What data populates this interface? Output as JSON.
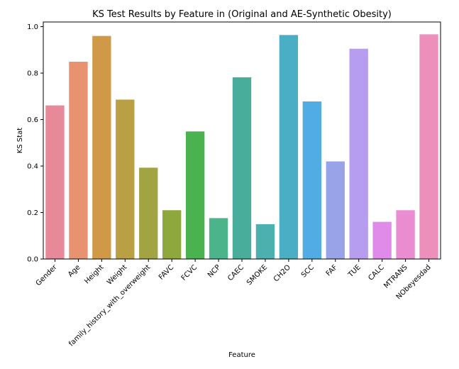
{
  "chart_data": {
    "type": "bar",
    "title": "KS Test Results by Feature in (Original and AE-Synthetic Obesity)",
    "xlabel": "Feature",
    "ylabel": "KS Stat",
    "ylim": [
      0,
      1.02
    ],
    "yticks": [
      "0.0",
      "0.2",
      "0.4",
      "0.6",
      "0.8",
      "1.0"
    ],
    "grid": false,
    "categories": [
      "Gender",
      "Age",
      "Height",
      "Weight",
      "family_history_with_overweight",
      "FAVC",
      "FCVC",
      "NCP",
      "CAEC",
      "SMOKE",
      "CH2O",
      "SCC",
      "FAF",
      "TUE",
      "CALC",
      "MTRANS",
      "NObeyesdad"
    ],
    "values": [
      0.661,
      0.849,
      0.96,
      0.686,
      0.393,
      0.21,
      0.549,
      0.176,
      0.782,
      0.15,
      0.964,
      0.678,
      0.42,
      0.905,
      0.16,
      0.21,
      0.967
    ],
    "colors": [
      "#e8899a",
      "#e9926f",
      "#cf9948",
      "#baa045",
      "#a2a342",
      "#8ea83e",
      "#4ab24f",
      "#4cb48a",
      "#49ad9b",
      "#4cb0ae",
      "#4aafc4",
      "#52ace4",
      "#99a4e8",
      "#b69df0",
      "#e08be9",
      "#ea8cd0",
      "#ec8fbb"
    ]
  }
}
